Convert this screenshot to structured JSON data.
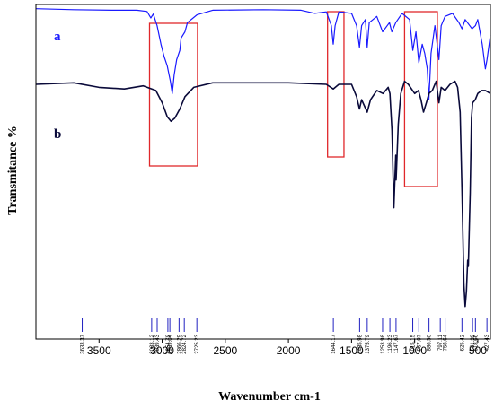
{
  "chart_data": {
    "type": "line",
    "xlabel": "Wavenumber cm-1",
    "ylabel": "Transmitance %",
    "xlim": [
      4000,
      400
    ],
    "ylim": [
      0,
      100
    ],
    "x_ticks": [
      3500,
      3000,
      2500,
      2000,
      1500,
      1000,
      500
    ],
    "grid": false,
    "series": [
      {
        "name": "a",
        "color": "#1a1aff",
        "points": [
          [
            4000,
            99.5
          ],
          [
            3700,
            99.2
          ],
          [
            3400,
            99.0
          ],
          [
            3200,
            99.0
          ],
          [
            3120,
            98.6
          ],
          [
            3090,
            96.5
          ],
          [
            3070,
            97.8
          ],
          [
            3040,
            94.0
          ],
          [
            3010,
            88.0
          ],
          [
            2985,
            84.0
          ],
          [
            2960,
            81.0
          ],
          [
            2935,
            76.0
          ],
          [
            2920,
            72.0
          ],
          [
            2905,
            78.0
          ],
          [
            2885,
            83.0
          ],
          [
            2860,
            86.0
          ],
          [
            2850,
            90.0
          ],
          [
            2820,
            92.0
          ],
          [
            2800,
            95.0
          ],
          [
            2725,
            97.5
          ],
          [
            2600,
            99.0
          ],
          [
            2200,
            99.2
          ],
          [
            1900,
            99.0
          ],
          [
            1790,
            98.0
          ],
          [
            1700,
            98.5
          ],
          [
            1660,
            94.0
          ],
          [
            1645,
            88.0
          ],
          [
            1630,
            94.0
          ],
          [
            1600,
            98.5
          ],
          [
            1500,
            98.0
          ],
          [
            1460,
            94.0
          ],
          [
            1437,
            87.0
          ],
          [
            1420,
            94.0
          ],
          [
            1390,
            96.0
          ],
          [
            1376,
            87.0
          ],
          [
            1360,
            95.0
          ],
          [
            1300,
            97.0
          ],
          [
            1254,
            92.0
          ],
          [
            1200,
            95.0
          ],
          [
            1181,
            92.0
          ],
          [
            1150,
            95.0
          ],
          [
            1100,
            98.0
          ],
          [
            1040,
            96.0
          ],
          [
            1015,
            86.0
          ],
          [
            990,
            92.0
          ],
          [
            967,
            82.0
          ],
          [
            940,
            88.0
          ],
          [
            920,
            85.0
          ],
          [
            900,
            80.0
          ],
          [
            887,
            70.0
          ],
          [
            870,
            85.0
          ],
          [
            840,
            94.0
          ],
          [
            808,
            83.0
          ],
          [
            790,
            94.0
          ],
          [
            759,
            97.0
          ],
          [
            700,
            98.0
          ],
          [
            650,
            95.0
          ],
          [
            625,
            93.0
          ],
          [
            600,
            96.0
          ],
          [
            545,
            93.0
          ],
          [
            519,
            94.0
          ],
          [
            500,
            96.0
          ],
          [
            465,
            88.0
          ],
          [
            440,
            80.0
          ],
          [
            427,
            83.0
          ],
          [
            400,
            91.0
          ]
        ]
      },
      {
        "name": "b",
        "color": "#0a0a3a",
        "points": [
          [
            4000,
            75.0
          ],
          [
            3700,
            75.5
          ],
          [
            3500,
            74.0
          ],
          [
            3300,
            73.5
          ],
          [
            3150,
            74.5
          ],
          [
            3050,
            73.0
          ],
          [
            3000,
            69.0
          ],
          [
            2960,
            64.5
          ],
          [
            2930,
            63.0
          ],
          [
            2900,
            64.0
          ],
          [
            2860,
            67.0
          ],
          [
            2820,
            71.0
          ],
          [
            2750,
            74.0
          ],
          [
            2600,
            75.5
          ],
          [
            2000,
            75.5
          ],
          [
            1700,
            75.0
          ],
          [
            1645,
            73.5
          ],
          [
            1600,
            75.0
          ],
          [
            1500,
            75.0
          ],
          [
            1460,
            71.0
          ],
          [
            1437,
            67.0
          ],
          [
            1420,
            70.0
          ],
          [
            1376,
            66.0
          ],
          [
            1350,
            70.0
          ],
          [
            1300,
            73.0
          ],
          [
            1250,
            72.0
          ],
          [
            1210,
            74.0
          ],
          [
            1196,
            72.0
          ],
          [
            1180,
            60.0
          ],
          [
            1165,
            35.0
          ],
          [
            1150,
            52.0
          ],
          [
            1147,
            44.0
          ],
          [
            1130,
            62.0
          ],
          [
            1110,
            72.0
          ],
          [
            1080,
            76.0
          ],
          [
            1050,
            75.0
          ],
          [
            1000,
            72.0
          ],
          [
            970,
            73.0
          ],
          [
            950,
            70.0
          ],
          [
            930,
            66.0
          ],
          [
            900,
            70.0
          ],
          [
            887,
            72.0
          ],
          [
            860,
            73.0
          ],
          [
            830,
            76.0
          ],
          [
            808,
            69.0
          ],
          [
            790,
            74.0
          ],
          [
            759,
            73.0
          ],
          [
            720,
            75.0
          ],
          [
            680,
            76.0
          ],
          [
            660,
            74.0
          ],
          [
            640,
            66.0
          ],
          [
            625,
            40.0
          ],
          [
            610,
            10.0
          ],
          [
            600,
            3.0
          ],
          [
            590,
            8.0
          ],
          [
            580,
            18.0
          ],
          [
            575,
            16.0
          ],
          [
            560,
            40.0
          ],
          [
            550,
            64.0
          ],
          [
            541,
            69.0
          ],
          [
            520,
            70.0
          ],
          [
            500,
            72.0
          ],
          [
            470,
            73.0
          ],
          [
            440,
            73.0
          ],
          [
            400,
            72.0
          ]
        ]
      }
    ],
    "peak_markers": [
      "3633.37",
      "3083.12",
      "3039.43",
      "2954.79",
      "2939.04",
      "2866.29",
      "2824.72",
      "2725.23",
      "1644.17",
      "1435.98",
      "1375.79",
      "1253.98",
      "1196.23",
      "1147.67",
      "1015.15",
      "967.07",
      "886.50",
      "797.11",
      "758.64",
      "625.42",
      "541.39",
      "518.66",
      "427.43"
    ],
    "highlight_boxes": [
      {
        "from": 3100,
        "to": 2720,
        "color": "#e0282b"
      },
      {
        "from": 1690,
        "to": 1560,
        "color": "#e0282b"
      },
      {
        "from": 1080,
        "to": 820,
        "color": "#e0282b"
      }
    ]
  }
}
